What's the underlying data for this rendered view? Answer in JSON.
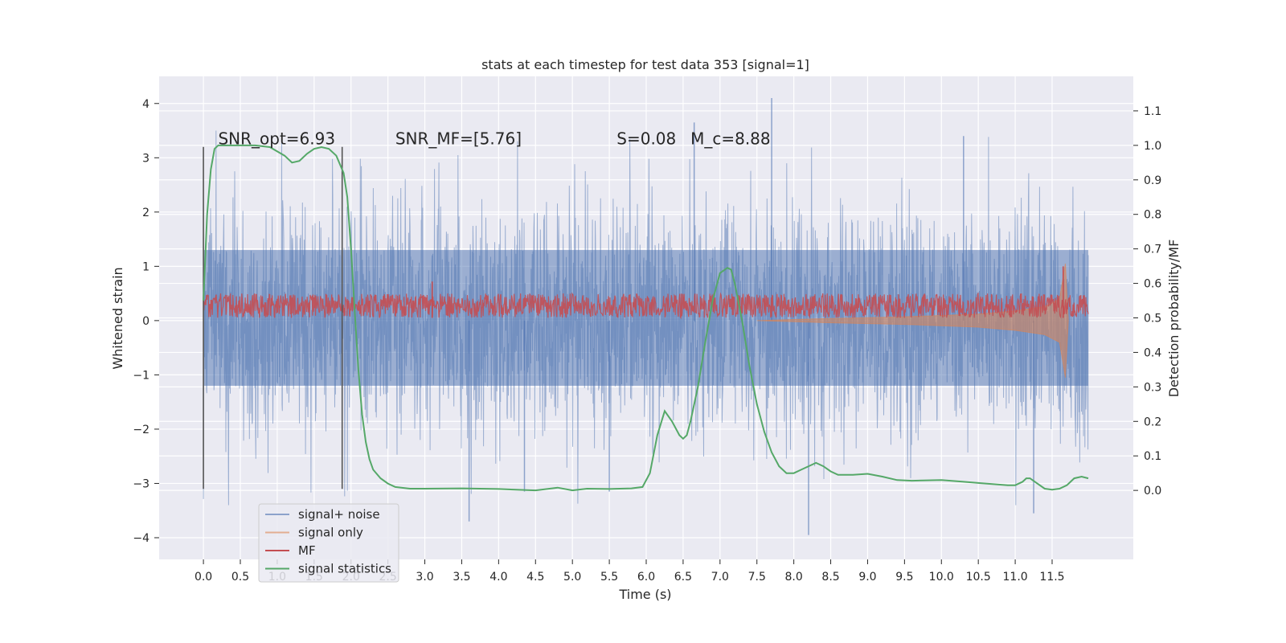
{
  "chart_data": {
    "type": "line",
    "title": "stats at each timestep for test data 353 [signal=1]",
    "xlabel": "Time (s)",
    "ylabel": "Whitened strain",
    "ylabel_right": "Detection probability/MF",
    "xlim": [
      -0.6,
      12.6
    ],
    "ylim": [
      -4.4,
      4.5
    ],
    "ylim_right": [
      -0.2,
      1.2
    ],
    "x_ticks": [
      0.0,
      0.5,
      1.0,
      1.5,
      2.0,
      2.5,
      3.0,
      3.5,
      4.0,
      4.5,
      5.0,
      5.5,
      6.0,
      6.5,
      7.0,
      7.5,
      8.0,
      8.5,
      9.0,
      9.5,
      10.0,
      10.5,
      11.0,
      11.5
    ],
    "x_tick_labels": [
      "0.0",
      "0.5",
      "1.0",
      "1.5",
      "2.0",
      "2.5",
      "3.0",
      "3.5",
      "4.0",
      "4.5",
      "5.0",
      "5.5",
      "6.0",
      "6.5",
      "7.0",
      "7.5",
      "8.0",
      "8.5",
      "9.0",
      "9.5",
      "10.0",
      "10.5",
      "11.0",
      "11.5"
    ],
    "y_ticks": [
      -4,
      -3,
      -2,
      -1,
      0,
      1,
      2,
      3,
      4
    ],
    "y_tick_labels": [
      "−4",
      "−3",
      "−2",
      "−1",
      "0",
      "1",
      "2",
      "3",
      "4"
    ],
    "y_right_ticks": [
      0.0,
      0.1,
      0.2,
      0.3,
      0.4,
      0.5,
      0.6,
      0.7,
      0.8,
      0.9,
      1.0,
      1.1
    ],
    "y_right_tick_labels": [
      "0.0",
      "0.1",
      "0.2",
      "0.3",
      "0.4",
      "0.5",
      "0.6",
      "0.7",
      "0.8",
      "0.9",
      "1.0",
      "1.1"
    ],
    "grid": true,
    "legend_position": "lower-left",
    "vlines": [
      {
        "x": 0.0,
        "y_range": [
          -3.1,
          3.2
        ]
      },
      {
        "x": 1.88,
        "y_range": [
          -3.1,
          3.2
        ]
      }
    ],
    "annotations": [
      {
        "text": "SNR_opt=6.93",
        "x": 0.2,
        "y": 3.25
      },
      {
        "text": "SNR_MF=[5.76]",
        "x": 2.6,
        "y": 3.25
      },
      {
        "text": "S=0.08",
        "x": 5.6,
        "y": 3.25
      },
      {
        "text": "M_c=8.88",
        "x": 6.6,
        "y": 3.25
      }
    ],
    "series": [
      {
        "name": "signal+ noise",
        "color": "#4c72b0",
        "axis": "left",
        "x_range": [
          0.0,
          11.99
        ],
        "band_core": [
          -1.2,
          1.3
        ],
        "band_typical": [
          -2.1,
          2.3
        ],
        "spikes": [
          [
            7.7,
            4.1
          ],
          [
            8.2,
            -3.95
          ],
          [
            3.6,
            -3.7
          ],
          [
            6.65,
            3.65
          ],
          [
            10.3,
            3.4
          ],
          [
            11.25,
            -3.55
          ],
          [
            4.35,
            -3.15
          ],
          [
            5.5,
            -3.15
          ]
        ]
      },
      {
        "name": "signal only",
        "color": "#dd8452",
        "axis": "left",
        "envelope": [
          [
            7.5,
            0.0
          ],
          [
            8.5,
            0.04
          ],
          [
            9.5,
            0.07
          ],
          [
            10.5,
            0.12
          ],
          [
            11.0,
            0.18
          ],
          [
            11.4,
            0.26
          ],
          [
            11.6,
            0.4
          ],
          [
            11.68,
            1.05
          ],
          [
            11.72,
            0.0
          ]
        ]
      },
      {
        "name": "MF",
        "color": "#c44e52",
        "axis": "left",
        "band": [
          0.05,
          0.5
        ],
        "x_range": [
          0.0,
          11.99
        ],
        "spikes": [
          [
            11.65,
            1.0
          ],
          [
            3.1,
            0.72
          ]
        ]
      },
      {
        "name": "signal statistics",
        "color": "#55a868",
        "axis": "right",
        "x": [
          0.0,
          0.05,
          0.1,
          0.15,
          0.2,
          0.3,
          0.5,
          0.7,
          0.9,
          1.1,
          1.2,
          1.3,
          1.4,
          1.5,
          1.6,
          1.7,
          1.8,
          1.9,
          1.95,
          2.0,
          2.05,
          2.1,
          2.15,
          2.2,
          2.25,
          2.3,
          2.4,
          2.5,
          2.6,
          2.8,
          3.0,
          3.5,
          4.0,
          4.5,
          4.8,
          5.0,
          5.2,
          5.5,
          5.8,
          5.95,
          6.05,
          6.15,
          6.25,
          6.35,
          6.45,
          6.5,
          6.55,
          6.6,
          6.7,
          6.8,
          6.9,
          7.0,
          7.1,
          7.15,
          7.2,
          7.3,
          7.4,
          7.5,
          7.6,
          7.7,
          7.8,
          7.9,
          8.0,
          8.1,
          8.2,
          8.3,
          8.4,
          8.5,
          8.6,
          8.8,
          9.0,
          9.2,
          9.4,
          9.6,
          10.0,
          10.3,
          10.6,
          10.9,
          11.0,
          11.1,
          11.15,
          11.2,
          11.3,
          11.4,
          11.5,
          11.6,
          11.7,
          11.8,
          11.9,
          11.99
        ],
        "values": [
          0.55,
          0.8,
          0.93,
          0.99,
          1.0,
          1.0,
          1.0,
          1.0,
          0.995,
          0.97,
          0.95,
          0.955,
          0.975,
          0.99,
          0.995,
          0.99,
          0.97,
          0.92,
          0.85,
          0.7,
          0.52,
          0.35,
          0.22,
          0.14,
          0.09,
          0.06,
          0.035,
          0.02,
          0.01,
          0.005,
          0.005,
          0.006,
          0.004,
          0.0,
          0.008,
          0.0,
          0.005,
          0.004,
          0.006,
          0.01,
          0.05,
          0.16,
          0.23,
          0.2,
          0.16,
          0.15,
          0.16,
          0.2,
          0.3,
          0.43,
          0.55,
          0.63,
          0.645,
          0.64,
          0.6,
          0.49,
          0.36,
          0.25,
          0.17,
          0.11,
          0.07,
          0.05,
          0.05,
          0.06,
          0.07,
          0.08,
          0.07,
          0.055,
          0.045,
          0.045,
          0.048,
          0.04,
          0.03,
          0.028,
          0.03,
          0.025,
          0.02,
          0.015,
          0.015,
          0.025,
          0.035,
          0.035,
          0.02,
          0.005,
          0.002,
          0.005,
          0.015,
          0.035,
          0.04,
          0.035
        ]
      }
    ]
  }
}
